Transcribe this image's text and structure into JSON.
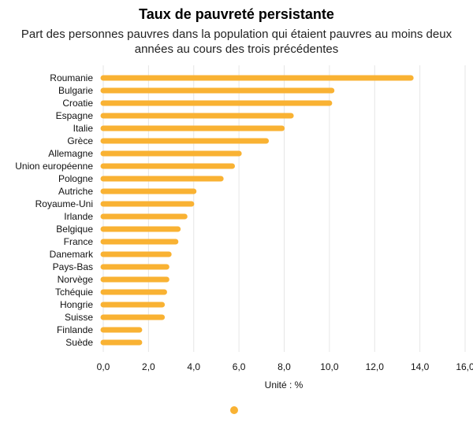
{
  "colors": {
    "bar": "#f9b233",
    "grid": "#e6e6e6",
    "text": "#111111"
  },
  "chart_data": {
    "type": "bar",
    "orientation": "horizontal",
    "title": "Taux de pauvreté persistante",
    "subtitle": "Part des personnes pauvres dans la population qui étaient pauvres au moins deux années au cours des trois précédentes",
    "xlabel": "Unité : %",
    "ylabel": "",
    "xlim": [
      0,
      16
    ],
    "xticks": [
      0,
      2,
      4,
      6,
      8,
      10,
      12,
      14,
      16
    ],
    "xtick_labels": [
      "0,0",
      "2,0",
      "4,0",
      "6,0",
      "8,0",
      "10,0",
      "12,0",
      "14,0",
      "16,0"
    ],
    "grid": "vertical",
    "legend": "bottom-center",
    "categories": [
      "Roumanie",
      "Bulgarie",
      "Croatie",
      "Espagne",
      "Italie",
      "Grèce",
      "Allemagne",
      "Union européenne",
      "Pologne",
      "Autriche",
      "Royaume-Uni",
      "Irlande",
      "Belgique",
      "France",
      "Danemark",
      "Pays-Bas",
      "Norvège",
      "Tchéquie",
      "Hongrie",
      "Suisse",
      "Finlande",
      "Suède"
    ],
    "series": [
      {
        "values": [
          13.6,
          10.1,
          10.0,
          8.3,
          7.9,
          7.2,
          6.0,
          5.7,
          5.2,
          4.0,
          3.9,
          3.6,
          3.3,
          3.2,
          2.9,
          2.8,
          2.8,
          2.7,
          2.6,
          2.6,
          1.6,
          1.6
        ]
      }
    ]
  }
}
